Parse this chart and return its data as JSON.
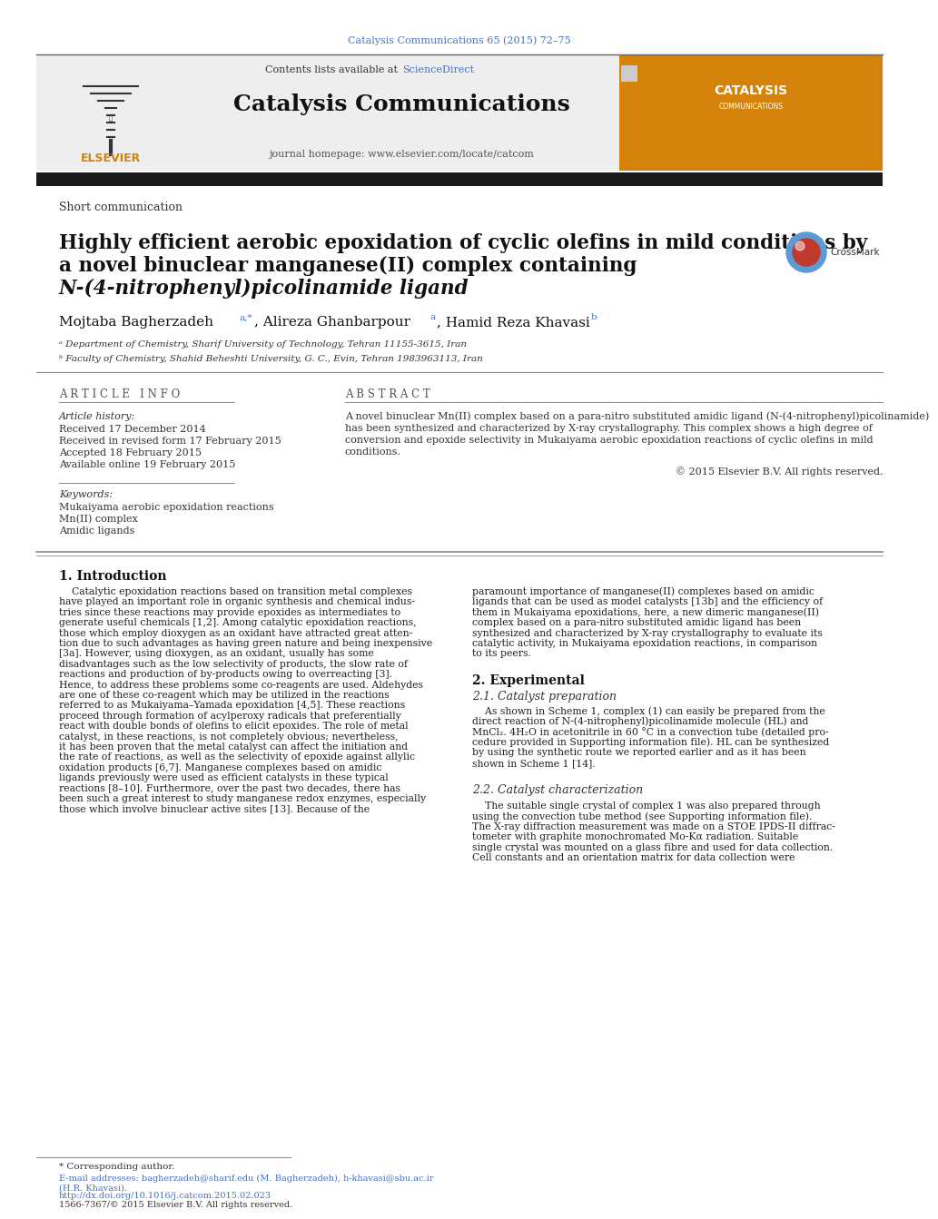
{
  "bg_color": "#ffffff",
  "top_citation": "Catalysis Communications 65 (2015) 72–75",
  "top_citation_color": "#4472c4",
  "header_bg": "#e8e8e8",
  "contents_text": "Contents lists available at ",
  "science_direct": "ScienceDirect",
  "science_direct_color": "#4472c4",
  "journal_title": "Catalysis Communications",
  "journal_homepage": "journal homepage: www.elsevier.com/locate/catcom",
  "section_label": "Short communication",
  "article_title_line1": "Highly efficient aerobic epoxidation of cyclic olefins in mild conditions by",
  "article_title_line2": "a novel binuclear manganese(II) complex containing",
  "article_title_line3": "N-(4-nitrophenyl)picolinamide ligand",
  "affil_a": "ᵃ Department of Chemistry, Sharif University of Technology, Tehran 11155-3615, Iran",
  "affil_b": "ᵇ Faculty of Chemistry, Shahid Beheshti University, G. C., Evin, Tehran 1983963113, Iran",
  "article_info_title": "A R T I C L E   I N F O",
  "abstract_title": "A B S T R A C T",
  "article_history_label": "Article history:",
  "received": "Received 17 December 2014",
  "received_revised": "Received in revised form 17 February 2015",
  "accepted": "Accepted 18 February 2015",
  "available": "Available online 19 February 2015",
  "keywords_label": "Keywords:",
  "kw1": "Mukaiyama aerobic epoxidation reactions",
  "kw2": "Mn(II) complex",
  "kw3": "Amidic ligands",
  "abstract_line1": "A novel binuclear Mn(II) complex based on a para-nitro substituted amidic ligand (N-(4-nitrophenyl)picolinamide)",
  "abstract_line2": "has been synthesized and characterized by X-ray crystallography. This complex shows a high degree of",
  "abstract_line3": "conversion and epoxide selectivity in Mukaiyama aerobic epoxidation reactions of cyclic olefins in mild",
  "abstract_line4": "conditions.",
  "copyright": "© 2015 Elsevier B.V. All rights reserved.",
  "intro_heading": "1. Introduction",
  "intro_col1_lines": [
    "    Catalytic epoxidation reactions based on transition metal complexes",
    "have played an important role in organic synthesis and chemical indus-",
    "tries since these reactions may provide epoxides as intermediates to",
    "generate useful chemicals [1,2]. Among catalytic epoxidation reactions,",
    "those which employ dioxygen as an oxidant have attracted great atten-",
    "tion due to such advantages as having green nature and being inexpensive",
    "[3a]. However, using dioxygen, as an oxidant, usually has some",
    "disadvantages such as the low selectivity of products, the slow rate of",
    "reactions and production of by-products owing to overreacting [3].",
    "Hence, to address these problems some co-reagents are used. Aldehydes",
    "are one of these co-reagent which may be utilized in the reactions",
    "referred to as Mukaiyama–Yamada epoxidation [4,5]. These reactions",
    "proceed through formation of acylperoxy radicals that preferentially",
    "react with double bonds of olefins to elicit epoxides. The role of metal",
    "catalyst, in these reactions, is not completely obvious; nevertheless,",
    "it has been proven that the metal catalyst can affect the initiation and",
    "the rate of reactions, as well as the selectivity of epoxide against allylic",
    "oxidation products [6,7]. Manganese complexes based on amidic",
    "ligands previously were used as efficient catalysts in these typical",
    "reactions [8–10]. Furthermore, over the past two decades, there has",
    "been such a great interest to study manganese redox enzymes, especially",
    "those which involve binuclear active sites [13]. Because of the"
  ],
  "intro_col2_lines": [
    "paramount importance of manganese(II) complexes based on amidic",
    "ligands that can be used as model catalysts [13b] and the efficiency of",
    "them in Mukaiyama epoxidations, here, a new dimeric manganese(II)",
    "complex based on a para-nitro substituted amidic ligand has been",
    "synthesized and characterized by X-ray crystallography to evaluate its",
    "catalytic activity, in Mukaiyama epoxidation reactions, in comparison",
    "to its peers."
  ],
  "experimental_heading": "2. Experimental",
  "exp_subheading": "2.1. Catalyst preparation",
  "exp_lines": [
    "    As shown in Scheme 1, complex (1) can easily be prepared from the",
    "direct reaction of N-(4-nitrophenyl)picolinamide molecule (HL) and",
    "MnCl₂. 4H₂O in acetonitrile in 60 °C in a convection tube (detailed pro-",
    "cedure provided in Supporting information file). HL can be synthesized",
    "by using the synthetic route we reported earlier and as it has been",
    "shown in Scheme 1 [14]."
  ],
  "char_subheading": "2.2. Catalyst characterization",
  "char_lines": [
    "    The suitable single crystal of complex 1 was also prepared through",
    "using the convection tube method (see Supporting information file).",
    "The X-ray diffraction measurement was made on a STOE IPDS-II diffrac-",
    "tometer with graphite monochromated Mo-Kα radiation. Suitable",
    "single crystal was mounted on a glass fibre and used for data collection.",
    "Cell constants and an orientation matrix for data collection were"
  ],
  "footnote_star": "* Corresponding author.",
  "footnote_email1": "E-mail addresses: bagherzadeh@sharif.edu (M. Bagherzadeh), h-khavasi@sbu.ac.ir",
  "footnote_email2": "(H.R. Khavasi).",
  "doi": "http://dx.doi.org/10.1016/j.catcom.2015.02.023",
  "issn": "1566-7367/© 2015 Elsevier B.V. All rights reserved."
}
